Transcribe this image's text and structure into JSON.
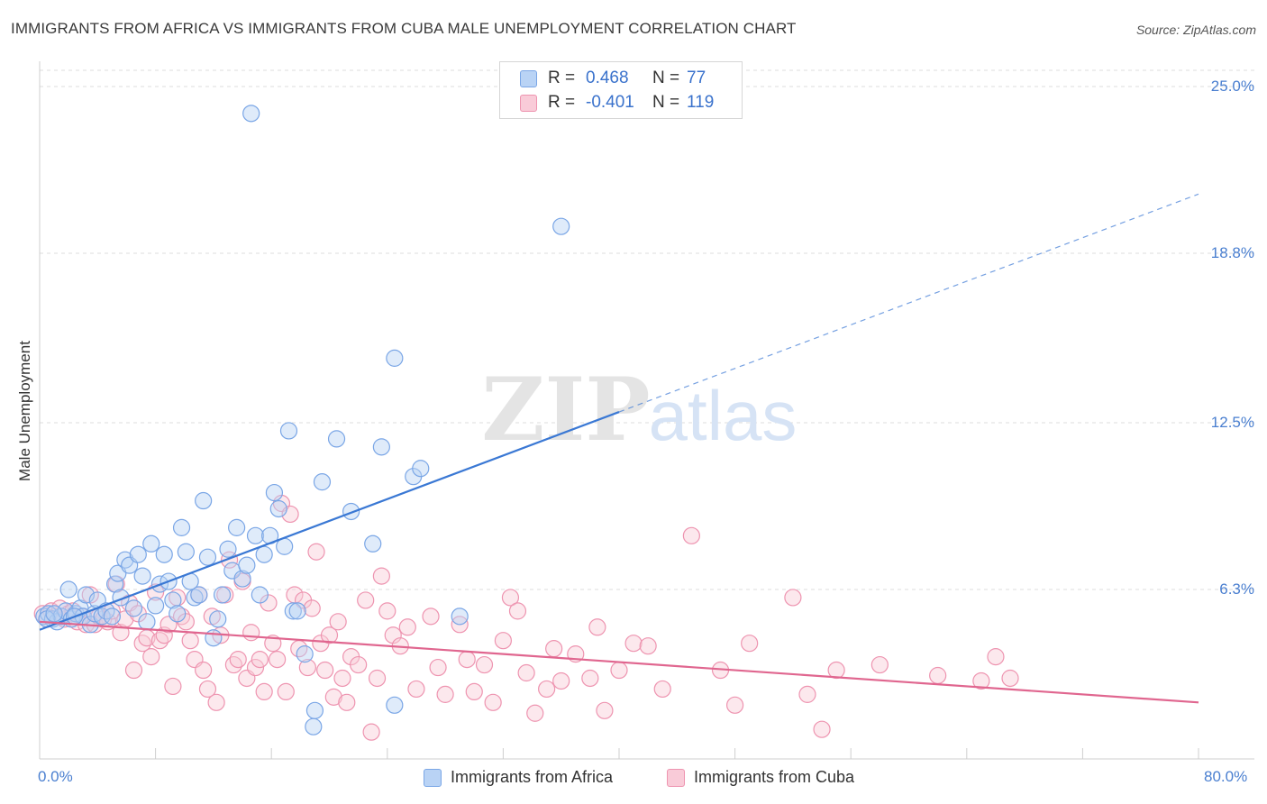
{
  "title": "IMMIGRANTS FROM AFRICA VS IMMIGRANTS FROM CUBA MALE UNEMPLOYMENT CORRELATION CHART",
  "source": "Source: ZipAtlas.com",
  "watermark": {
    "zip": "ZIP",
    "atlas": "atlas"
  },
  "legend": {
    "rows": [
      {
        "r_label": "R =",
        "r_value": "0.468",
        "n_label": "N =",
        "n_value": "77",
        "color": "#b9d3f5"
      },
      {
        "r_label": "R =",
        "r_value": "-0.401",
        "n_label": "N =",
        "n_value": "119",
        "color": "#f9cbd8"
      }
    ]
  },
  "bottom_legend": {
    "africa": "Immigrants from Africa",
    "cuba": "Immigrants from Cuba"
  },
  "chart_data": {
    "type": "scatter",
    "title": "IMMIGRANTS FROM AFRICA VS IMMIGRANTS FROM CUBA MALE UNEMPLOYMENT CORRELATION CHART",
    "xlabel": "",
    "ylabel": "Male Unemployment",
    "xlim": [
      0,
      80
    ],
    "ylim": [
      0,
      25
    ],
    "x_tick_labels": [
      "0.0%",
      "80.0%"
    ],
    "y_tick_values": [
      6.3,
      12.5,
      18.8,
      25.0
    ],
    "y_tick_labels": [
      "6.3%",
      "12.5%",
      "18.8%",
      "25.0%"
    ],
    "grid": "horizontal dashed",
    "legend_position": "top-center",
    "series": [
      {
        "name": "Immigrants from Africa",
        "color": "#7aa6e6",
        "fill": "#b9d3f5",
        "trend": {
          "x": [
            0,
            40
          ],
          "y": [
            4.8,
            12.9
          ],
          "dashed_extension": {
            "x": [
              40,
              80
            ],
            "y": [
              12.9,
              21.0
            ]
          },
          "color": "#3a78d4"
        },
        "points": [
          [
            0.3,
            5.3
          ],
          [
            0.6,
            5.4
          ],
          [
            0.9,
            5.2
          ],
          [
            1.2,
            5.1
          ],
          [
            1.5,
            5.3
          ],
          [
            1.8,
            5.5
          ],
          [
            2.0,
            6.3
          ],
          [
            2.2,
            5.2
          ],
          [
            2.5,
            5.4
          ],
          [
            2.8,
            5.6
          ],
          [
            3.0,
            5.3
          ],
          [
            3.2,
            6.1
          ],
          [
            3.5,
            5.0
          ],
          [
            3.8,
            5.4
          ],
          [
            4.0,
            5.9
          ],
          [
            4.3,
            5.3
          ],
          [
            4.6,
            5.5
          ],
          [
            5.0,
            5.3
          ],
          [
            5.2,
            6.5
          ],
          [
            5.4,
            6.9
          ],
          [
            5.6,
            6.0
          ],
          [
            5.9,
            7.4
          ],
          [
            6.2,
            7.2
          ],
          [
            6.5,
            5.6
          ],
          [
            6.8,
            7.6
          ],
          [
            7.1,
            6.8
          ],
          [
            7.4,
            5.1
          ],
          [
            7.7,
            8.0
          ],
          [
            8.0,
            5.7
          ],
          [
            8.3,
            6.5
          ],
          [
            8.6,
            7.6
          ],
          [
            8.9,
            6.6
          ],
          [
            9.2,
            5.9
          ],
          [
            9.5,
            5.4
          ],
          [
            9.8,
            8.6
          ],
          [
            10.1,
            7.7
          ],
          [
            10.4,
            6.6
          ],
          [
            10.7,
            6.0
          ],
          [
            11.0,
            6.1
          ],
          [
            11.3,
            9.6
          ],
          [
            11.6,
            7.5
          ],
          [
            12.0,
            4.5
          ],
          [
            12.3,
            5.2
          ],
          [
            12.6,
            6.1
          ],
          [
            13.0,
            7.8
          ],
          [
            13.3,
            7.0
          ],
          [
            13.6,
            8.6
          ],
          [
            14.0,
            6.7
          ],
          [
            14.3,
            7.2
          ],
          [
            14.6,
            24.0
          ],
          [
            14.9,
            8.3
          ],
          [
            15.2,
            6.1
          ],
          [
            15.5,
            7.6
          ],
          [
            15.9,
            8.3
          ],
          [
            16.2,
            9.9
          ],
          [
            16.5,
            9.3
          ],
          [
            16.9,
            7.9
          ],
          [
            17.2,
            12.2
          ],
          [
            17.5,
            5.5
          ],
          [
            17.8,
            5.5
          ],
          [
            18.3,
            3.9
          ],
          [
            18.9,
            1.2
          ],
          [
            19.0,
            1.8
          ],
          [
            19.5,
            10.3
          ],
          [
            20.5,
            11.9
          ],
          [
            21.5,
            9.2
          ],
          [
            23.0,
            8.0
          ],
          [
            23.6,
            11.6
          ],
          [
            24.5,
            14.9
          ],
          [
            24.5,
            2.0
          ],
          [
            25.8,
            10.5
          ],
          [
            26.3,
            10.8
          ],
          [
            29.0,
            5.3
          ],
          [
            36.0,
            19.8
          ],
          [
            0.5,
            5.2
          ],
          [
            1.0,
            5.4
          ],
          [
            2.4,
            5.3
          ]
        ]
      },
      {
        "name": "Immigrants from Cuba",
        "color": "#ee94b0",
        "fill": "#f9cbd8",
        "trend": {
          "x": [
            0,
            80
          ],
          "y": [
            5.1,
            2.1
          ],
          "color": "#e0668f"
        },
        "points": [
          [
            0.2,
            5.4
          ],
          [
            0.5,
            5.2
          ],
          [
            0.8,
            5.5
          ],
          [
            1.1,
            5.3
          ],
          [
            1.4,
            5.6
          ],
          [
            1.7,
            5.2
          ],
          [
            2.0,
            5.4
          ],
          [
            2.3,
            5.5
          ],
          [
            2.6,
            5.1
          ],
          [
            2.9,
            5.3
          ],
          [
            3.2,
            5.0
          ],
          [
            3.5,
            6.1
          ],
          [
            3.8,
            5.0
          ],
          [
            4.1,
            5.3
          ],
          [
            4.4,
            5.2
          ],
          [
            4.7,
            5.1
          ],
          [
            5.0,
            5.5
          ],
          [
            5.3,
            6.5
          ],
          [
            5.6,
            4.7
          ],
          [
            5.9,
            5.2
          ],
          [
            6.2,
            5.8
          ],
          [
            6.5,
            3.3
          ],
          [
            6.8,
            5.4
          ],
          [
            7.1,
            4.3
          ],
          [
            7.4,
            4.5
          ],
          [
            7.7,
            3.8
          ],
          [
            8.0,
            6.2
          ],
          [
            8.3,
            4.4
          ],
          [
            8.6,
            4.6
          ],
          [
            8.9,
            5.0
          ],
          [
            9.2,
            2.7
          ],
          [
            9.5,
            6.0
          ],
          [
            9.8,
            5.3
          ],
          [
            10.1,
            5.1
          ],
          [
            10.4,
            4.4
          ],
          [
            10.7,
            3.7
          ],
          [
            11.0,
            6.1
          ],
          [
            11.3,
            3.3
          ],
          [
            11.6,
            2.6
          ],
          [
            11.9,
            5.3
          ],
          [
            12.2,
            2.1
          ],
          [
            12.5,
            4.6
          ],
          [
            12.8,
            6.1
          ],
          [
            13.1,
            7.4
          ],
          [
            13.4,
            3.5
          ],
          [
            13.7,
            3.7
          ],
          [
            14.0,
            6.6
          ],
          [
            14.3,
            3.0
          ],
          [
            14.6,
            4.7
          ],
          [
            14.9,
            3.4
          ],
          [
            15.2,
            3.7
          ],
          [
            15.5,
            2.5
          ],
          [
            15.8,
            5.8
          ],
          [
            16.1,
            4.3
          ],
          [
            16.4,
            3.7
          ],
          [
            16.7,
            9.5
          ],
          [
            17.0,
            2.5
          ],
          [
            17.3,
            9.1
          ],
          [
            17.6,
            6.1
          ],
          [
            17.9,
            4.1
          ],
          [
            18.2,
            5.9
          ],
          [
            18.5,
            3.4
          ],
          [
            18.8,
            5.6
          ],
          [
            19.1,
            7.7
          ],
          [
            19.4,
            4.3
          ],
          [
            19.7,
            3.3
          ],
          [
            20.0,
            4.6
          ],
          [
            20.3,
            2.3
          ],
          [
            20.6,
            5.1
          ],
          [
            20.9,
            3.0
          ],
          [
            21.2,
            2.1
          ],
          [
            21.5,
            3.8
          ],
          [
            22.0,
            3.5
          ],
          [
            22.5,
            5.9
          ],
          [
            22.9,
            1.0
          ],
          [
            23.3,
            3.0
          ],
          [
            23.6,
            6.8
          ],
          [
            24.0,
            5.5
          ],
          [
            24.4,
            4.6
          ],
          [
            24.9,
            4.2
          ],
          [
            25.4,
            4.9
          ],
          [
            26.0,
            2.6
          ],
          [
            27.0,
            5.3
          ],
          [
            27.5,
            3.4
          ],
          [
            28.0,
            2.4
          ],
          [
            29.0,
            5.0
          ],
          [
            29.5,
            3.7
          ],
          [
            30.0,
            2.5
          ],
          [
            30.7,
            3.5
          ],
          [
            31.3,
            2.1
          ],
          [
            32.0,
            4.4
          ],
          [
            32.5,
            6.0
          ],
          [
            33.0,
            5.5
          ],
          [
            33.6,
            3.2
          ],
          [
            34.2,
            1.7
          ],
          [
            35.0,
            2.6
          ],
          [
            35.5,
            4.1
          ],
          [
            36.0,
            2.9
          ],
          [
            37.0,
            3.9
          ],
          [
            38.0,
            3.0
          ],
          [
            38.5,
            4.9
          ],
          [
            39.0,
            1.8
          ],
          [
            40.0,
            3.3
          ],
          [
            41.0,
            4.3
          ],
          [
            42.0,
            4.2
          ],
          [
            43.0,
            2.6
          ],
          [
            45.0,
            8.3
          ],
          [
            47.0,
            3.3
          ],
          [
            48.0,
            2.0
          ],
          [
            49.0,
            4.3
          ],
          [
            52.0,
            6.0
          ],
          [
            53.0,
            2.4
          ],
          [
            54.0,
            1.1
          ],
          [
            55.0,
            3.3
          ],
          [
            58.0,
            3.5
          ],
          [
            62.0,
            3.1
          ],
          [
            65.0,
            2.9
          ],
          [
            66.0,
            3.8
          ],
          [
            67.0,
            3.0
          ]
        ]
      }
    ]
  }
}
